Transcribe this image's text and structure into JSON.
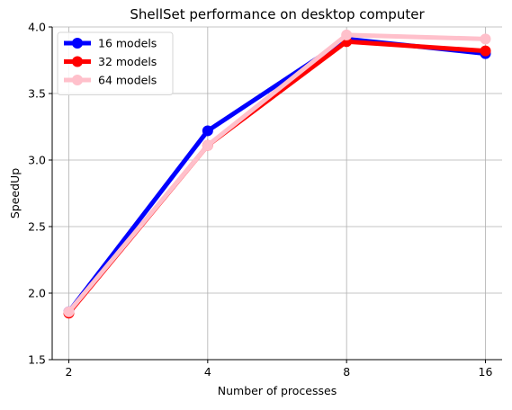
{
  "chart_data": {
    "type": "line",
    "title": "ShellSet performance on desktop computer",
    "xlabel": "Number of processes",
    "ylabel": "SpeedUp",
    "x": [
      2,
      4,
      8,
      16
    ],
    "x_scale": "log2",
    "x_tick_labels": [
      "2",
      "4",
      "8",
      "16"
    ],
    "ylim": [
      1.5,
      4.0
    ],
    "y_ticks": [
      1.5,
      2.0,
      2.5,
      3.0,
      3.5,
      4.0
    ],
    "y_tick_labels": [
      "1.5",
      "2.0",
      "2.5",
      "3.0",
      "3.5",
      "4.0"
    ],
    "grid": true,
    "legend": {
      "position": "top-left"
    },
    "series": [
      {
        "name": "16 models",
        "color": "#0000ff",
        "values": [
          1.86,
          3.22,
          3.91,
          3.8
        ]
      },
      {
        "name": "32 models",
        "color": "#ff0000",
        "values": [
          1.85,
          3.11,
          3.89,
          3.82
        ]
      },
      {
        "name": "64 models",
        "color": "#ffc0cb",
        "values": [
          1.86,
          3.11,
          3.94,
          3.91
        ]
      }
    ]
  }
}
